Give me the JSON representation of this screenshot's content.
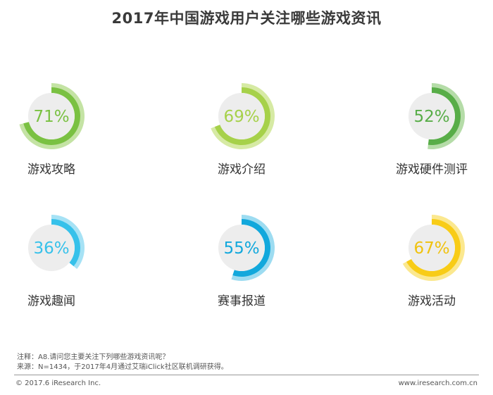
{
  "title": "2017年中国游戏用户关注哪些游戏资讯",
  "chart_data": {
    "type": "pie",
    "title": "2017年中国游戏用户关注哪些游戏资讯",
    "unit": "%",
    "items": [
      {
        "label": "游戏攻略",
        "value": 71,
        "display": "71%",
        "color": "#7ac142",
        "light": "#c4e3a4",
        "text_color": "#7ac142"
      },
      {
        "label": "游戏介绍",
        "value": 69,
        "display": "69%",
        "color": "#a6d14a",
        "light": "#d6eaa4",
        "text_color": "#a6d14a"
      },
      {
        "label": "游戏硬件测评",
        "value": 52,
        "display": "52%",
        "color": "#58ad48",
        "light": "#b5dca8",
        "text_color": "#58ad48"
      },
      {
        "label": "游戏趣闻",
        "value": 36,
        "display": "36%",
        "color": "#36c1ea",
        "light": "#a6e2f5",
        "text_color": "#36c1ea"
      },
      {
        "label": "赛事报道",
        "value": 55,
        "display": "55%",
        "color": "#12a8dc",
        "light": "#9ddcf1",
        "text_color": "#12a8dc"
      },
      {
        "label": "游戏活动",
        "value": 67,
        "display": "67%",
        "color": "#f8cc17",
        "light": "#fbe88f",
        "text_color": "#f0c20e"
      }
    ]
  },
  "footer": {
    "note": "注释：A8.请问您主要关注下列哪些游戏资讯呢？",
    "source": "来源：N=1434，于2017年4月通过艾瑞iClick社区联机调研获得。",
    "copyright": "© 2017.6 iResearch Inc.",
    "website": "www.iresearch.com.cn"
  }
}
